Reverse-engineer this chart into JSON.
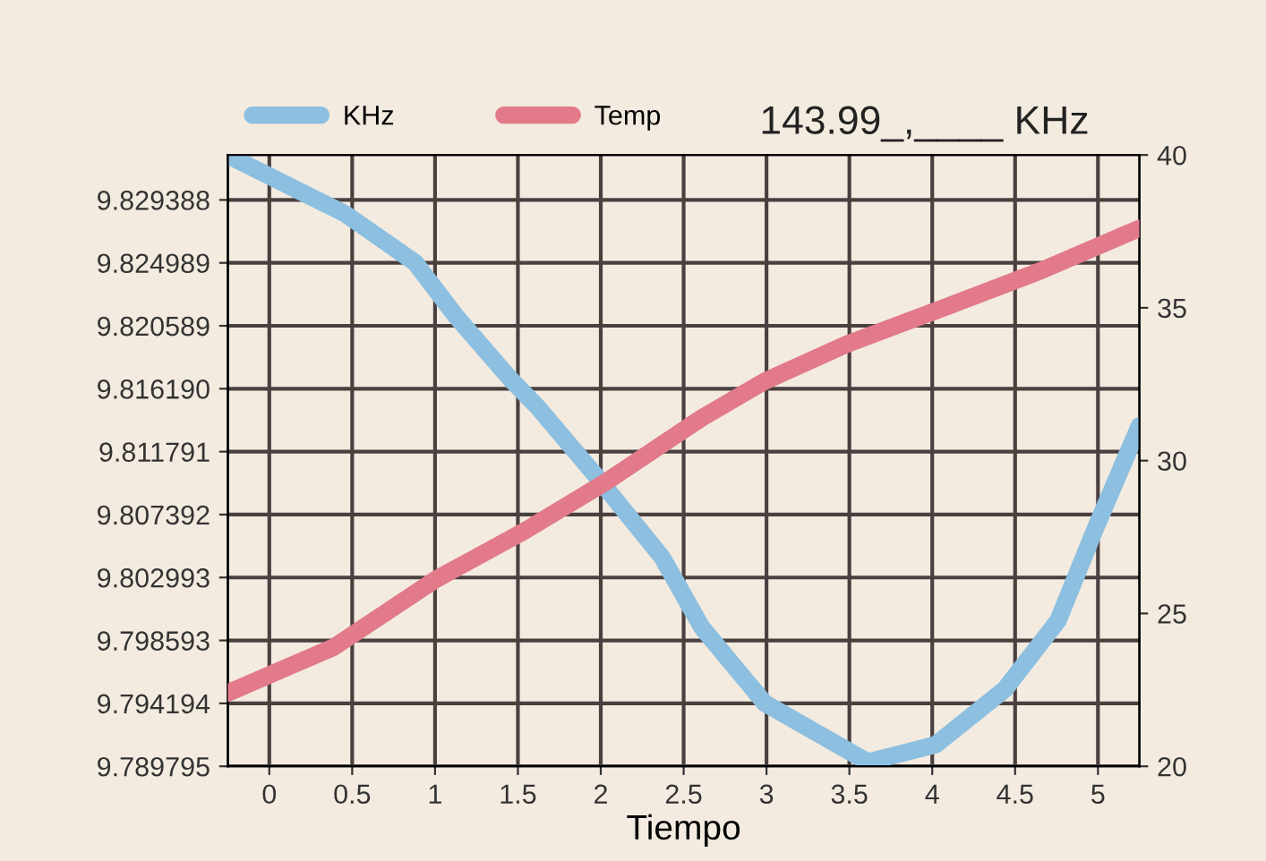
{
  "chart_data": {
    "type": "line",
    "annotations": [
      "143.99_,____ KHz"
    ],
    "xlabel": "Tiempo",
    "xlim": [
      -0.25,
      5.25
    ],
    "xticks": [
      0,
      0.5,
      1,
      1.5,
      2,
      2.5,
      3,
      3.5,
      4,
      4.5,
      5
    ],
    "ylim": [
      9.789795,
      9.83253
    ],
    "yticks": [
      9.789795,
      9.794194,
      9.798593,
      9.802993,
      9.807392,
      9.811791,
      {
        "value": 9.81619,
        "label": "9.816190"
      },
      9.820589,
      9.824989,
      9.829388
    ],
    "y2lim": [
      20,
      40
    ],
    "y2ticks": [
      20,
      25,
      30,
      35,
      40
    ],
    "grid": true,
    "legend": "top left",
    "series": [
      {
        "name": "KHz",
        "color": "#8cbfe0",
        "x": [
          -0.25,
          0.46,
          0.88,
          1.13,
          1.46,
          1.62,
          2.0,
          2.37,
          2.61,
          2.99,
          3.61,
          4.02,
          4.44,
          4.76,
          4.98,
          5.25
        ],
        "values": [
          9.8325,
          9.8284,
          9.825,
          9.8212,
          9.8168,
          9.8149,
          9.8097,
          9.8044,
          9.7995,
          9.7942,
          9.7901,
          9.7913,
          9.7952,
          9.8,
          9.8063,
          9.8136
        ]
      },
      {
        "name": "Temp",
        "color": "#e27a8a",
        "axis": "y2",
        "x": [
          -0.25,
          0.39,
          1.0,
          1.54,
          2.03,
          2.61,
          2.99,
          3.48,
          4.02,
          4.65,
          5.25
        ],
        "values": [
          22.4,
          23.9,
          26.1,
          27.7,
          29.3,
          31.4,
          32.6,
          33.8,
          34.9,
          36.2,
          37.6
        ]
      }
    ]
  }
}
